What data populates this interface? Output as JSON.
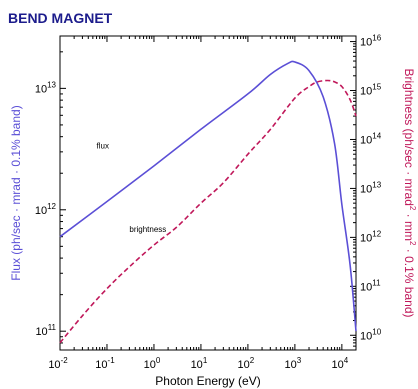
{
  "colors": {
    "title": "#1c1c8c",
    "flux": "#5b4fd6",
    "brightness": "#c0185a"
  },
  "chart_data": {
    "type": "line",
    "title": "BEND MAGNET",
    "xlabel": "Photon Energy (eV)",
    "ylabel_left": "Flux (ph/sec · mrad · 0.1% band)",
    "ylabel_right_parts": {
      "before": "Brightness (ph/sec · mrad",
      "sup1": "2",
      "middle": " · mm",
      "sup2": "2",
      "after": " · 0.1% band)"
    },
    "x_scale": "log",
    "y_left_scale": "log",
    "y_right_scale": "log",
    "xlim": [
      0.01,
      20000
    ],
    "ylim_left": [
      70000000000,
      27000000000000
    ],
    "ylim_right": [
      5000000000,
      13000000000000000
    ],
    "x_ticks": [
      {
        "base": "10",
        "exp": "-2",
        "value": 0.01
      },
      {
        "base": "10",
        "exp": "-1",
        "value": 0.1
      },
      {
        "base": "10",
        "exp": "0",
        "value": 1
      },
      {
        "base": "10",
        "exp": "1",
        "value": 10
      },
      {
        "base": "10",
        "exp": "2",
        "value": 100
      },
      {
        "base": "10",
        "exp": "3",
        "value": 1000
      },
      {
        "base": "10",
        "exp": "4",
        "value": 10000
      }
    ],
    "y_left_ticks": [
      {
        "base": "10",
        "exp": "11",
        "value": 100000000000
      },
      {
        "base": "10",
        "exp": "12",
        "value": 1000000000000
      },
      {
        "base": "10",
        "exp": "13",
        "value": 10000000000000
      }
    ],
    "y_right_ticks": [
      {
        "base": "10",
        "exp": "10",
        "value": 10000000000
      },
      {
        "base": "10",
        "exp": "11",
        "value": 100000000000
      },
      {
        "base": "10",
        "exp": "12",
        "value": 1000000000000
      },
      {
        "base": "10",
        "exp": "13",
        "value": 10000000000000
      },
      {
        "base": "10",
        "exp": "14",
        "value": 100000000000000
      },
      {
        "base": "10",
        "exp": "15",
        "value": 1000000000000000
      },
      {
        "base": "10",
        "exp": "16",
        "value": 10000000000000000
      }
    ],
    "series": [
      {
        "name": "flux",
        "axis": "left",
        "style": "solid",
        "x": [
          0.01,
          0.1,
          1,
          10,
          100,
          300,
          700,
          1000,
          2000,
          4000,
          7000,
          10000,
          15000,
          20000
        ],
        "y": [
          600000000000,
          1170000000000,
          2300000000000,
          4600000000000,
          9000000000000,
          13000000000000,
          16000000000000,
          16500000000000,
          14000000000000,
          8500000000000,
          3500000000000,
          1100000000000,
          350000000000,
          100000000000
        ]
      },
      {
        "name": "brightness",
        "axis": "right",
        "style": "dashed",
        "x": [
          0.01,
          0.03,
          0.1,
          0.3,
          1,
          3,
          10,
          30,
          100,
          300,
          1000,
          2000,
          3000,
          5000,
          7000,
          10000,
          15000,
          20000
        ],
        "y": [
          7000000000,
          25000000000,
          90000000000,
          250000000000,
          700000000000,
          1600000000000,
          5000000000000,
          13000000000000,
          50000000000000,
          160000000000000,
          700000000000000,
          1200000000000000,
          1500000000000000,
          1600000000000000,
          1500000000000000,
          1200000000000000,
          650000000000000,
          300000000000000
        ]
      }
    ],
    "annotations": [
      {
        "text": "flux",
        "x": 0.06,
        "y": 3200000000000,
        "axis": "left"
      },
      {
        "text": "brightness",
        "x": 0.3,
        "y": 1300000000000,
        "axis": "right"
      }
    ],
    "grid": false,
    "legend": "none"
  }
}
